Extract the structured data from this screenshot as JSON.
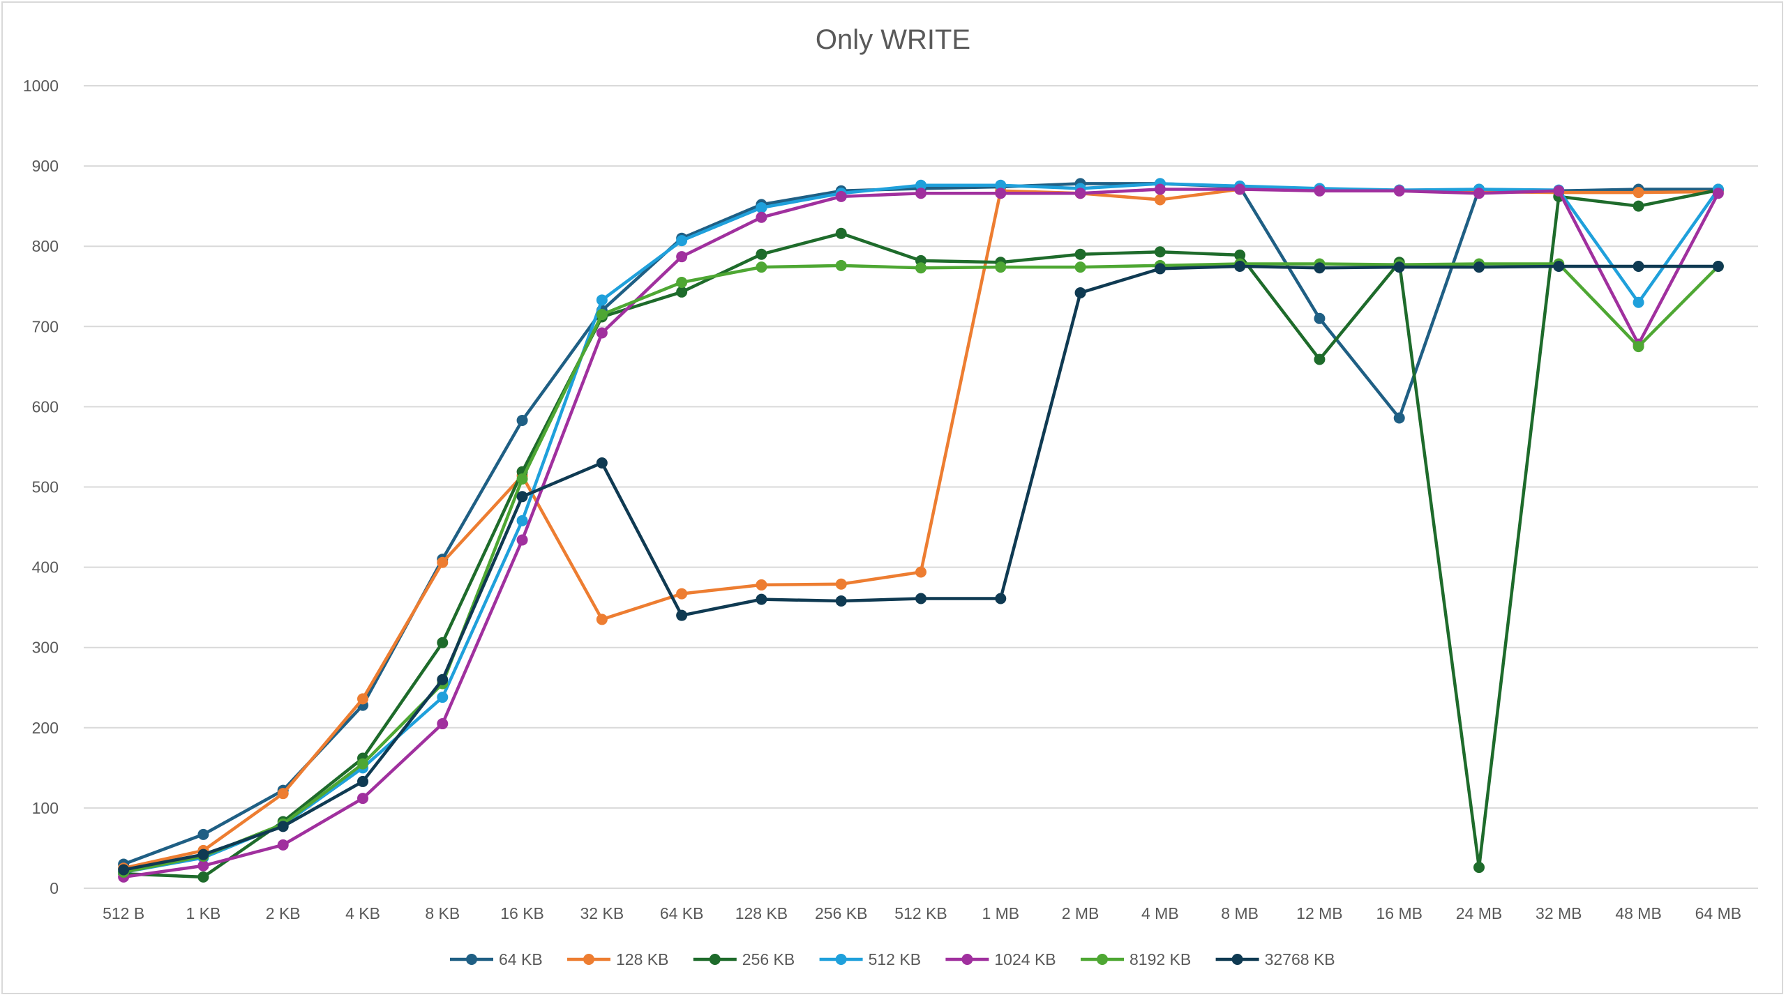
{
  "chart_data": {
    "type": "line",
    "title": "Only WRITE",
    "xlabel": "",
    "ylabel": "",
    "ylim": [
      0,
      1000
    ],
    "yticks": [
      "0",
      "100",
      "200",
      "300",
      "400",
      "500",
      "600",
      "700",
      "800",
      "900",
      "1000"
    ],
    "grid": "horizontal",
    "legend_position": "bottom",
    "categories": [
      "512 B",
      "1 KB",
      "2 KB",
      "4 KB",
      "8 KB",
      "16 KB",
      "32 KB",
      "64 KB",
      "128 KB",
      "256 KB",
      "512 KB",
      "1 MB",
      "2 MB",
      "4 MB",
      "8 MB",
      "12 MB",
      "16 MB",
      "24 MB",
      "32 MB",
      "48 MB",
      "64 MB"
    ],
    "series": [
      {
        "name": "64 KB",
        "color": "#1f5f84",
        "values": [
          30,
          67,
          122,
          228,
          410,
          583,
          720,
          810,
          852,
          869,
          872,
          874,
          878,
          878,
          874,
          710,
          586,
          871,
          869,
          871,
          871
        ]
      },
      {
        "name": "128 KB",
        "color": "#ed7d31",
        "values": [
          25,
          47,
          118,
          236,
          406,
          514,
          335,
          367,
          378,
          379,
          394,
          869,
          866,
          858,
          871,
          870,
          870,
          868,
          867,
          867,
          868
        ]
      },
      {
        "name": "256 KB",
        "color": "#1e6b2b",
        "values": [
          18,
          14,
          83,
          162,
          306,
          519,
          712,
          743,
          790,
          816,
          782,
          780,
          790,
          793,
          789,
          659,
          780,
          26,
          862,
          850,
          870
        ]
      },
      {
        "name": "512 KB",
        "color": "#1fa0db",
        "values": [
          20,
          38,
          79,
          150,
          238,
          458,
          733,
          807,
          848,
          866,
          876,
          876,
          872,
          878,
          875,
          872,
          870,
          871,
          870,
          730,
          871
        ]
      },
      {
        "name": "1024 KB",
        "color": "#a0309e",
        "values": [
          14,
          28,
          54,
          112,
          205,
          434,
          692,
          787,
          836,
          862,
          866,
          866,
          866,
          871,
          871,
          869,
          869,
          866,
          869,
          678,
          866
        ]
      },
      {
        "name": "8192 KB",
        "color": "#4ea733",
        "values": [
          20,
          40,
          80,
          155,
          255,
          510,
          715,
          755,
          774,
          776,
          773,
          774,
          774,
          776,
          778,
          778,
          777,
          778,
          778,
          675,
          775
        ]
      },
      {
        "name": "32768 KB",
        "color": "#0f3a52",
        "values": [
          23,
          42,
          77,
          133,
          260,
          488,
          530,
          340,
          360,
          358,
          361,
          361,
          742,
          772,
          775,
          773,
          774,
          774,
          775,
          775,
          775
        ]
      }
    ]
  }
}
